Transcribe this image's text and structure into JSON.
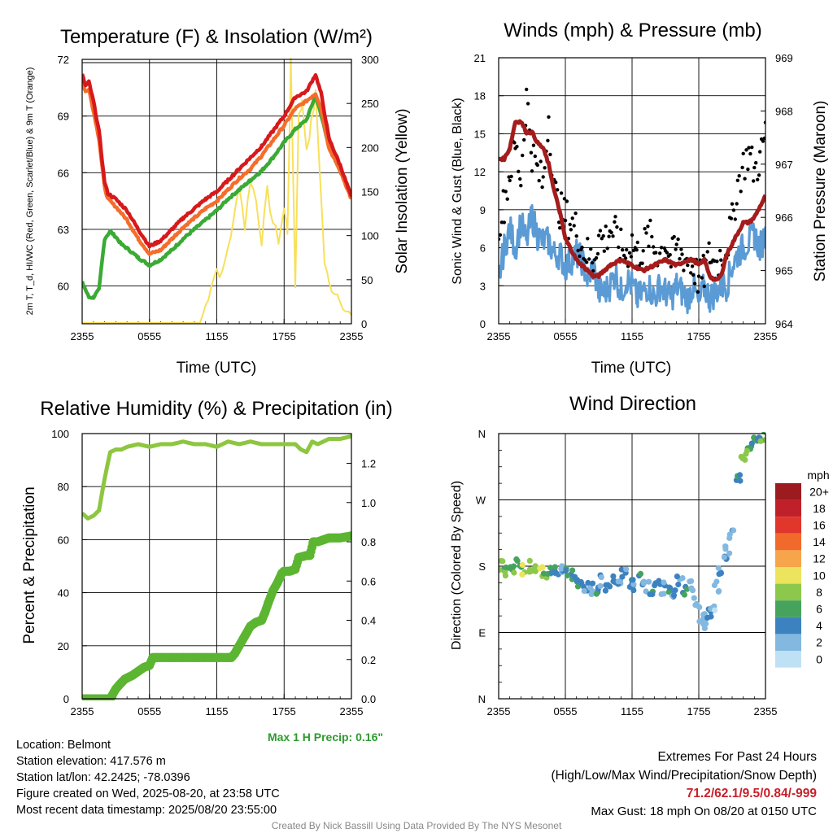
{
  "panels": {
    "temp": {
      "title": "Temperature (F) & Insolation (W/m²)",
      "ylabel_left": "2m T, T_d, HI/WC (Red, Green, Scarlet/Blue) & 9m T (Orange)",
      "ylabel_right": "Solar Insolation (Yellow)",
      "xlabel": "Time (UTC)"
    },
    "wind": {
      "title": "Winds (mph) & Pressure (mb)",
      "ylabel_left": "Sonic Wind & Gust (Blue, Black)",
      "ylabel_right": "Station Pressure (Maroon)",
      "xlabel": "Time (UTC)"
    },
    "rh": {
      "title": "Relative Humidity (%) & Precipitation (in)",
      "ylabel_left": "Percent & Precipitation",
      "max_precip": "Max 1 H Precip: 0.16\""
    },
    "dir": {
      "title": "Wind Direction",
      "ylabel_left": "Direction (Colored By Speed)",
      "legend_title": "mph",
      "legend_labels": [
        "20+",
        "18",
        "16",
        "14",
        "12",
        "10",
        "8",
        "6",
        "4",
        "2",
        "0"
      ],
      "legend_colors": [
        "#9b1b1e",
        "#c0202a",
        "#e0362c",
        "#f26a2b",
        "#f7a54a",
        "#ece45c",
        "#8cc84b",
        "#46a35e",
        "#3d82c0",
        "#83b8e0",
        "#bfe1f6"
      ]
    }
  },
  "info": {
    "location": "Location: Belmont",
    "elevation": "Station elevation: 417.576 m",
    "latlon": "Station lat/lon: 42.2425; -78.0396",
    "created": "Figure created on Wed, 2025-08-20, at 23:58 UTC",
    "recent": "Most recent data timestamp: 2025/08/20 23:55:00"
  },
  "extremes": {
    "title": "Extremes For Past 24 Hours",
    "subtitle": "(High/Low/Max Wind/Precipitation/Snow Depth)",
    "values": "71.2/62.1/9.5/0.84/-999",
    "gust": "Max Gust: 18 mph On 08/20 at 0150 UTC"
  },
  "credit": "Created By Nick Bassill Using Data Provided By The NYS Mesonet",
  "colors": {
    "temp": "#d7191c",
    "temp_9m": "#f46d2b",
    "dewpoint": "#3aaa35",
    "solar": "#f8e05a",
    "wind": "#5b9bd5",
    "gust": "#000000",
    "pressure": "#a51c1c",
    "rh": "#8dc63f",
    "precip": "#5cb531"
  },
  "chart_data": [
    {
      "type": "line",
      "title": "Temperature (F) & Insolation (W/m²)",
      "xlabel": "Time (UTC)",
      "x_ticks": [
        "2355",
        "0555",
        "1155",
        "1755",
        "2355"
      ],
      "x_hours": [
        0,
        24
      ],
      "ylim": [
        58,
        72
      ],
      "y_ticks": [
        60,
        63,
        66,
        69,
        72
      ],
      "y2lim": [
        0,
        300
      ],
      "y2_ticks": [
        0,
        50,
        100,
        150,
        200,
        250,
        300
      ],
      "series": [
        {
          "axis": "left",
          "color": "#d7191c",
          "x": [
            0,
            0.3,
            0.6,
            1.0,
            1.5,
            2.0,
            2.3,
            3.0,
            4.0,
            5.0,
            6.0,
            7.0,
            8.0,
            9.0,
            10.0,
            11.0,
            12.0,
            13.0,
            14.0,
            15.0,
            16.0,
            17.0,
            18.0,
            19.0,
            20.0,
            20.8,
            21.3,
            22.0,
            23.0,
            24.0
          ],
          "y": [
            71.2,
            70.6,
            70.8,
            69.8,
            68.2,
            65.5,
            64.9,
            64.6,
            64.0,
            63.0,
            62.1,
            62.4,
            63.0,
            63.6,
            64.1,
            64.6,
            65.0,
            65.6,
            66.2,
            66.8,
            67.4,
            68.2,
            69.0,
            70.0,
            70.3,
            71.2,
            70.2,
            67.8,
            66.4,
            64.7
          ]
        },
        {
          "axis": "left",
          "color": "#f46d2b",
          "x": [
            0,
            0.3,
            0.6,
            1.0,
            1.5,
            2.0,
            2.3,
            3.0,
            4.0,
            5.0,
            6.0,
            7.0,
            8.0,
            9.0,
            10.0,
            11.0,
            12.0,
            13.0,
            14.0,
            15.0,
            16.0,
            17.0,
            18.0,
            19.0,
            20.0,
            20.8,
            21.3,
            22.0,
            23.0,
            24.0
          ],
          "y": [
            70.8,
            70.3,
            70.4,
            69.3,
            67.8,
            65.2,
            64.6,
            64.2,
            63.5,
            62.5,
            61.7,
            61.9,
            62.5,
            63.1,
            63.6,
            64.1,
            64.5,
            65.1,
            65.7,
            66.2,
            66.9,
            67.7,
            68.5,
            69.4,
            69.8,
            70.2,
            69.4,
            67.3,
            66.1,
            64.6
          ]
        },
        {
          "axis": "left",
          "color": "#3aaa35",
          "x": [
            0,
            0.3,
            0.6,
            1.0,
            1.5,
            2.0,
            2.5,
            3.0,
            3.5,
            4.0,
            5.0,
            6.0,
            7.0,
            8.0,
            9.0,
            10.0,
            11.0,
            12.0,
            13.0,
            14.0,
            15.0,
            16.0,
            17.0,
            18.0,
            19.0,
            20.0,
            20.8,
            21.5,
            22.0,
            23.0,
            24.0
          ],
          "y": [
            60.2,
            59.8,
            59.4,
            59.4,
            59.8,
            62.5,
            62.9,
            62.6,
            62.2,
            62.0,
            61.5,
            61.1,
            61.4,
            61.9,
            62.5,
            63.0,
            63.5,
            64.0,
            64.6,
            65.1,
            65.6,
            66.1,
            66.8,
            67.6,
            68.3,
            68.8,
            70.1,
            68.6,
            67.4,
            66.1,
            64.9
          ]
        },
        {
          "axis": "right",
          "color": "#f8e05a",
          "x": [
            0,
            10.5,
            11.0,
            11.5,
            12.0,
            12.5,
            13.0,
            13.5,
            14.0,
            14.5,
            15.0,
            15.5,
            16.0,
            16.5,
            17.0,
            17.5,
            18.0,
            18.3,
            18.6,
            19.0,
            19.3,
            19.6,
            20.0,
            20.4,
            20.8,
            21.2,
            21.6,
            22.0,
            23.0,
            23.5,
            24.0
          ],
          "y": [
            1,
            1,
            20,
            45,
            62,
            55,
            88,
            115,
            160,
            110,
            165,
            140,
            95,
            150,
            115,
            95,
            130,
            105,
            295,
            45,
            240,
            250,
            200,
            225,
            260,
            170,
            70,
            45,
            30,
            15,
            8
          ]
        }
      ]
    },
    {
      "type": "line",
      "title": "Winds (mph) & Pressure (mb)",
      "xlabel": "Time (UTC)",
      "x_ticks": [
        "2355",
        "0555",
        "1155",
        "1755",
        "2355"
      ],
      "x_hours": [
        0,
        24
      ],
      "ylim": [
        0,
        21
      ],
      "y_ticks": [
        0,
        3,
        6,
        9,
        12,
        15,
        18,
        21
      ],
      "y2lim": [
        964,
        969
      ],
      "y2_ticks": [
        964,
        965,
        966,
        967,
        968,
        969
      ],
      "series": [
        {
          "name": "Sonic Wind",
          "axis": "left",
          "color": "#5b9bd5",
          "x": [
            0,
            0.5,
            1,
            1.5,
            2,
            2.5,
            3,
            3.5,
            4,
            4.5,
            5,
            5.5,
            6,
            6.5,
            7,
            7.5,
            8,
            8.5,
            9,
            9.5,
            10,
            10.5,
            11,
            11.5,
            12,
            12.5,
            13,
            13.5,
            14,
            14.5,
            15,
            15.5,
            16,
            16.5,
            17,
            17.5,
            18,
            18.5,
            19,
            19.5,
            20,
            20.5,
            21,
            21.5,
            22,
            22.5,
            23,
            23.5,
            24
          ],
          "y": [
            3.5,
            6.0,
            7.5,
            6.0,
            8.0,
            6.5,
            8.5,
            7.0,
            6.5,
            6.5,
            5.5,
            5.5,
            4.5,
            5.0,
            5.5,
            5.0,
            3.5,
            4.5,
            2.5,
            2.5,
            3.0,
            4.0,
            2.5,
            3.5,
            3.0,
            2.0,
            2.5,
            3.0,
            2.0,
            3.0,
            2.5,
            2.0,
            3.0,
            2.5,
            2.0,
            3.0,
            1.5,
            3.0,
            2.0,
            2.5,
            3.0,
            3.0,
            4.5,
            5.5,
            6.0,
            6.5,
            7.0,
            6.0,
            7.0
          ]
        },
        {
          "name": "Gust",
          "axis": "left",
          "color": "#000000",
          "x": [
            0,
            0.5,
            1,
            1.5,
            2,
            2.5,
            3,
            3.5,
            4,
            4.5,
            5,
            5.5,
            6,
            6.5,
            7,
            7.5,
            8,
            8.5,
            9,
            9.5,
            10,
            10.5,
            11,
            11.5,
            12,
            12.5,
            13,
            13.5,
            14,
            14.5,
            15,
            15.5,
            16,
            16.5,
            17,
            17.5,
            18,
            18.5,
            19,
            19.5,
            20,
            20.5,
            21,
            21.5,
            22,
            22.5,
            23,
            23.5,
            24
          ],
          "y": [
            8.0,
            9.5,
            12.0,
            14.0,
            11.5,
            18.0,
            13.5,
            12.0,
            11.0,
            16.5,
            10.5,
            9.0,
            8.5,
            8.0,
            7.5,
            6.0,
            5.5,
            5.0,
            7.0,
            6.5,
            7.5,
            7.0,
            6.0,
            5.5,
            6.5,
            5.5,
            6.0,
            7.0,
            6.0,
            5.5,
            6.5,
            5.0,
            6.0,
            5.5,
            5.0,
            4.5,
            3.5,
            4.0,
            5.5,
            4.5,
            5.5,
            6.0,
            8.0,
            11.0,
            12.5,
            13.5,
            12.0,
            13.0,
            15.0
          ]
        },
        {
          "name": "Station Pressure",
          "axis": "right",
          "color": "#a51c1c",
          "x": [
            0,
            0.5,
            1.0,
            1.5,
            2.0,
            2.5,
            3.0,
            3.5,
            4.0,
            4.5,
            5.0,
            5.5,
            6.0,
            6.5,
            7.0,
            7.5,
            8.0,
            8.5,
            9.0,
            10.0,
            11.0,
            12.0,
            13.0,
            14.0,
            15.0,
            16.0,
            17.0,
            17.5,
            18.0,
            18.5,
            19.0,
            19.5,
            20.0,
            20.5,
            21.0,
            21.5,
            22.0,
            22.5,
            23.0,
            23.5,
            24.0
          ],
          "y": [
            967.1,
            967.1,
            967.3,
            967.8,
            967.8,
            967.6,
            967.6,
            967.4,
            967.3,
            967.0,
            966.5,
            966.1,
            965.6,
            965.4,
            965.2,
            965.1,
            965.0,
            964.9,
            964.9,
            965.1,
            965.2,
            965.1,
            965.0,
            965.1,
            965.2,
            965.1,
            965.2,
            965.2,
            965.1,
            965.2,
            964.9,
            964.8,
            964.9,
            965.3,
            965.5,
            965.7,
            965.9,
            965.9,
            966.0,
            966.2,
            966.4
          ]
        }
      ]
    },
    {
      "type": "line",
      "title": "Relative Humidity (%) & Precipitation (in)",
      "x_ticks": [
        "2355",
        "0555",
        "1155",
        "1755",
        "2355"
      ],
      "x_hours": [
        0,
        24
      ],
      "ylim": [
        0,
        100
      ],
      "y_ticks": [
        0,
        20,
        40,
        60,
        80,
        100
      ],
      "y2lim": [
        0,
        1.3514
      ],
      "y2_ticks": [
        0.0,
        0.2,
        0.4,
        0.6,
        0.8,
        1.0,
        1.2
      ],
      "series": [
        {
          "axis": "left",
          "color": "#8dc63f",
          "x": [
            0,
            0.5,
            1.0,
            1.5,
            2.0,
            2.5,
            3.0,
            3.5,
            4.0,
            5.0,
            6.0,
            7.0,
            8.0,
            9.0,
            10.0,
            11.0,
            12.0,
            13.0,
            14.0,
            15.0,
            16.0,
            17.0,
            18.0,
            19.0,
            19.5,
            20.0,
            20.5,
            21.0,
            22.0,
            23.0,
            24.0
          ],
          "y": [
            70,
            68,
            69,
            71,
            83,
            93,
            94,
            94,
            95,
            96,
            95,
            96,
            96,
            97,
            96,
            96,
            95,
            97,
            96,
            97,
            96,
            96,
            96,
            96,
            94,
            93,
            97,
            96,
            98,
            98,
            99
          ]
        },
        {
          "axis": "right",
          "color": "#5cb531",
          "x": [
            0,
            1.0,
            2.0,
            2.5,
            3.0,
            3.3,
            3.8,
            4.5,
            5.0,
            5.5,
            6.0,
            6.3,
            6.6,
            7.0,
            8.0,
            9.0,
            10.0,
            11.0,
            12.0,
            13.0,
            13.3,
            13.6,
            14.0,
            14.5,
            15.0,
            15.5,
            16.0,
            16.3,
            16.6,
            17.0,
            17.4,
            17.8,
            18.0,
            18.5,
            19.0,
            19.3,
            20.0,
            20.3,
            20.6,
            21.0,
            21.5,
            22.0,
            22.5,
            23.0,
            24.0
          ],
          "y": [
            0,
            0,
            0,
            0,
            0.05,
            0.07,
            0.1,
            0.12,
            0.14,
            0.16,
            0.17,
            0.21,
            0.21,
            0.21,
            0.21,
            0.21,
            0.21,
            0.21,
            0.21,
            0.21,
            0.21,
            0.23,
            0.27,
            0.32,
            0.37,
            0.39,
            0.4,
            0.44,
            0.49,
            0.55,
            0.59,
            0.64,
            0.65,
            0.65,
            0.66,
            0.72,
            0.73,
            0.73,
            0.8,
            0.8,
            0.81,
            0.82,
            0.82,
            0.82,
            0.83
          ]
        }
      ]
    },
    {
      "type": "scatter",
      "title": "Wind Direction",
      "x_ticks": [
        "2355",
        "0555",
        "1155",
        "1755",
        "2355"
      ],
      "x_hours": [
        0,
        24
      ],
      "ylim": [
        0,
        360
      ],
      "y_ticks": [
        "N",
        "E",
        "S",
        "W",
        "N"
      ],
      "series": [
        {
          "name": "Wind Direction",
          "x": [
            0.3,
            0.8,
            1.3,
            1.8,
            2.3,
            2.8,
            3.3,
            3.8,
            4.3,
            4.8,
            5.3,
            5.8,
            6.3,
            6.8,
            7.3,
            7.8,
            8.3,
            8.8,
            9.3,
            9.8,
            10.3,
            10.8,
            11.3,
            11.8,
            12.3,
            12.8,
            13.3,
            13.8,
            14.3,
            14.8,
            15.3,
            15.8,
            16.3,
            16.8,
            17.3,
            17.8,
            18.3,
            18.6,
            19.0,
            19.3,
            19.6,
            20.0,
            20.3,
            20.6,
            21.0,
            21.5,
            22.0,
            22.5,
            23.0,
            23.5,
            23.8
          ],
          "y": [
            180,
            175,
            178,
            182,
            176,
            180,
            179,
            174,
            170,
            178,
            176,
            173,
            171,
            167,
            160,
            154,
            150,
            148,
            160,
            150,
            162,
            158,
            168,
            156,
            155,
            162,
            152,
            148,
            158,
            150,
            145,
            140,
            160,
            144,
            152,
            130,
            110,
            100,
            116,
            125,
            152,
            170,
            190,
            200,
            225,
            300,
            325,
            340,
            350,
            348,
            355
          ],
          "speed": [
            6,
            7,
            6,
            5,
            9,
            8,
            7,
            8,
            6,
            5,
            4,
            3,
            4,
            5,
            4,
            3,
            2,
            4,
            2,
            3,
            4,
            2,
            3,
            5,
            3,
            4,
            2,
            4,
            3,
            2,
            4,
            2,
            3,
            4,
            1,
            2,
            2,
            1,
            3,
            1,
            2,
            2,
            3,
            1,
            2,
            4,
            8,
            6,
            5,
            4,
            7
          ]
        }
      ]
    }
  ]
}
